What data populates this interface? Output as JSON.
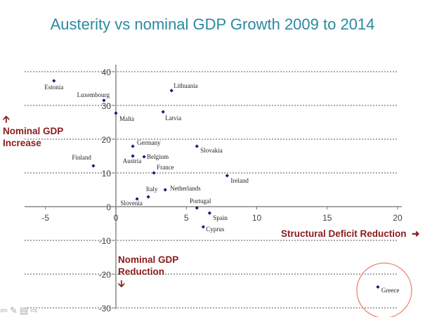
{
  "chart_data": {
    "type": "scatter",
    "title": "Austerity vs nominal GDP Growth 2009 to 2014",
    "xlabel": "Structural Deficit Reduction",
    "ylabel_top": "Nominal GDP Increase",
    "ylabel_bottom": "Nominal GDP Reduction",
    "xlim": [
      -6,
      20
    ],
    "ylim": [
      -30,
      40
    ],
    "xticks": [
      "-5",
      "0",
      "5",
      "10",
      "15",
      "20"
    ],
    "yticks": [
      "40",
      "30",
      "20",
      "10",
      "0",
      "-10",
      "-20",
      "-30"
    ],
    "grid": "horizontal dotted",
    "marker_color": "#0a1f7a",
    "annotation_color": "#8b1a1a",
    "highlight": {
      "label": "Greece",
      "shape": "circle",
      "color": "#f08070"
    },
    "points": [
      {
        "label": "Estonia",
        "x": -4.4,
        "y": 37.3
      },
      {
        "label": "Luxembourg",
        "x": -0.85,
        "y": 31.5
      },
      {
        "label": "Malta",
        "x": 0.0,
        "y": 27.7
      },
      {
        "label": "Lithuania",
        "x": 3.95,
        "y": 34.4
      },
      {
        "label": "Latvia",
        "x": 3.35,
        "y": 28.1
      },
      {
        "label": "Germany",
        "x": 1.2,
        "y": 17.9
      },
      {
        "label": "Austria",
        "x": 1.2,
        "y": 15.0
      },
      {
        "label": "Belgium",
        "x": 2.0,
        "y": 14.8
      },
      {
        "label": "Slovakia",
        "x": 5.75,
        "y": 17.9
      },
      {
        "label": "France",
        "x": 2.7,
        "y": 10.0
      },
      {
        "label": "Ireland",
        "x": 7.9,
        "y": 9.2
      },
      {
        "label": "Finland",
        "x": -1.6,
        "y": 12.1
      },
      {
        "label": "Netherlands",
        "x": 3.5,
        "y": 5.0
      },
      {
        "label": "Italy",
        "x": 2.3,
        "y": 2.9
      },
      {
        "label": "Slovenia",
        "x": 1.5,
        "y": 2.3
      },
      {
        "label": "Portugal",
        "x": 5.75,
        "y": -0.4
      },
      {
        "label": "Spain",
        "x": 6.65,
        "y": -1.9
      },
      {
        "label": "Cyprus",
        "x": 6.2,
        "y": -6.0
      },
      {
        "label": "Greece",
        "x": 18.6,
        "y": -23.8
      }
    ]
  },
  "toolbar": {
    "icons": [
      "back-arrow-icon",
      "pen-icon",
      "menu-icon",
      "forward-arrow-icon"
    ]
  }
}
